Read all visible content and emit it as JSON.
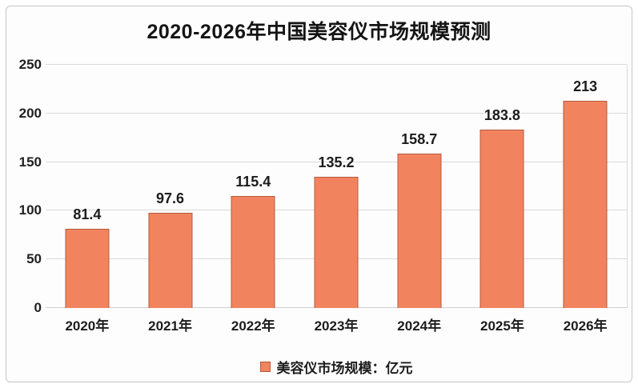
{
  "title": "2020-2026年中国美容仪市场规模预测",
  "chart_data": {
    "type": "bar",
    "title": "2020-2026年中国美容仪市场规模预测",
    "categories": [
      "2020年",
      "2021年",
      "2022年",
      "2023年",
      "2024年",
      "2025年",
      "2026年"
    ],
    "values": [
      81.4,
      97.6,
      115.4,
      135.2,
      158.7,
      183.8,
      213
    ],
    "xlabel": "",
    "ylabel": "",
    "ylim": [
      0,
      250
    ],
    "yticks": [
      0,
      50,
      100,
      150,
      200,
      250
    ],
    "grid": true,
    "legend": {
      "position": "bottom",
      "label": "美容仪市场规模：亿元"
    },
    "colors": {
      "bar_fill": "#f1845f",
      "bar_border": "#b55a40",
      "gridline": "#d9d9d9",
      "text": "#1c1c1c",
      "card_border": "#c6c6ca",
      "background": "#fdfdfd"
    }
  }
}
